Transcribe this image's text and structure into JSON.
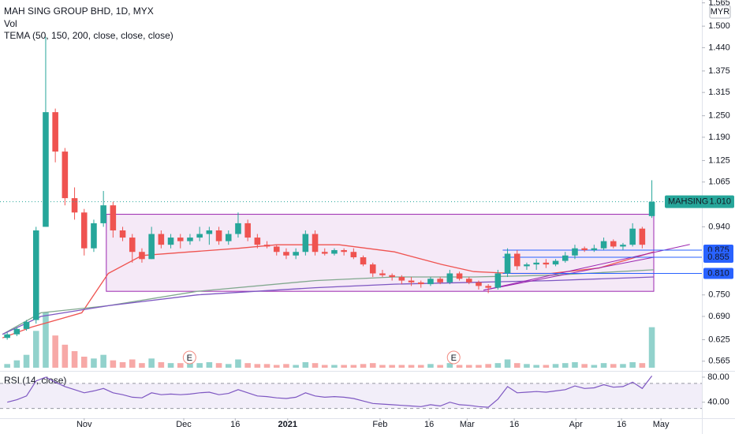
{
  "chart_data": {
    "type": "candlestick",
    "title": "MAH SING GROUP BHD, 1D, MYX",
    "volume_label": "Vol",
    "tema_label": "TEMA (50, 150, 200, close, close, close)",
    "currency": "MYR",
    "up_color": "#26a69a",
    "down_color": "#ef5350",
    "x": [
      1,
      3,
      5,
      7,
      9,
      11,
      13,
      15,
      17,
      19,
      21,
      23,
      25,
      27,
      29,
      31,
      33,
      35,
      37,
      39,
      41,
      43,
      45,
      47,
      49,
      51,
      53,
      55,
      57,
      59,
      61,
      63,
      65,
      67,
      69,
      71,
      73,
      75,
      77,
      79,
      81,
      83,
      85,
      87,
      89,
      91,
      93,
      95,
      97,
      99,
      101,
      103,
      105,
      107,
      109,
      111,
      113,
      115,
      117,
      119,
      121,
      123,
      125,
      127,
      129,
      131,
      133,
      135
    ],
    "open": [
      0.63,
      0.64,
      0.655,
      0.68,
      0.94,
      1.26,
      1.15,
      1.02,
      0.98,
      0.88,
      0.95,
      1.0,
      0.93,
      0.91,
      0.87,
      0.85,
      0.92,
      0.89,
      0.91,
      0.9,
      0.91,
      0.92,
      0.93,
      0.9,
      0.92,
      0.95,
      0.91,
      0.89,
      0.885,
      0.87,
      0.86,
      0.87,
      0.92,
      0.87,
      0.865,
      0.875,
      0.87,
      0.855,
      0.835,
      0.81,
      0.805,
      0.8,
      0.79,
      0.785,
      0.78,
      0.795,
      0.785,
      0.81,
      0.795,
      0.785,
      0.775,
      0.77,
      0.81,
      0.865,
      0.83,
      0.835,
      0.84,
      0.835,
      0.845,
      0.86,
      0.88,
      0.875,
      0.88,
      0.9,
      0.885,
      0.89,
      0.935,
      0.97
    ],
    "high": [
      0.645,
      0.66,
      0.68,
      0.94,
      1.47,
      1.27,
      1.16,
      1.05,
      0.99,
      0.96,
      1.04,
      1.01,
      0.94,
      0.92,
      0.88,
      0.94,
      0.93,
      0.92,
      0.92,
      0.92,
      0.94,
      0.94,
      0.94,
      0.93,
      0.98,
      0.96,
      0.92,
      0.9,
      0.89,
      0.88,
      0.88,
      0.93,
      0.93,
      0.88,
      0.88,
      0.88,
      0.88,
      0.86,
      0.84,
      0.82,
      0.81,
      0.805,
      0.8,
      0.79,
      0.8,
      0.8,
      0.82,
      0.815,
      0.8,
      0.79,
      0.78,
      0.82,
      0.88,
      0.875,
      0.84,
      0.85,
      0.85,
      0.85,
      0.87,
      0.89,
      0.885,
      0.89,
      0.91,
      0.905,
      0.895,
      0.95,
      0.94,
      1.07
    ],
    "low": [
      0.625,
      0.635,
      0.65,
      0.67,
      0.94,
      1.12,
      1.0,
      0.96,
      0.86,
      0.87,
      0.94,
      0.91,
      0.9,
      0.84,
      0.84,
      0.85,
      0.88,
      0.88,
      0.88,
      0.89,
      0.9,
      0.89,
      0.89,
      0.89,
      0.91,
      0.9,
      0.88,
      0.88,
      0.86,
      0.85,
      0.85,
      0.86,
      0.86,
      0.86,
      0.86,
      0.86,
      0.85,
      0.83,
      0.8,
      0.8,
      0.79,
      0.78,
      0.775,
      0.77,
      0.775,
      0.78,
      0.78,
      0.79,
      0.78,
      0.765,
      0.755,
      0.765,
      0.8,
      0.82,
      0.82,
      0.82,
      0.825,
      0.83,
      0.84,
      0.85,
      0.87,
      0.87,
      0.875,
      0.88,
      0.875,
      0.885,
      0.88,
      0.965
    ],
    "close": [
      0.64,
      0.655,
      0.675,
      0.93,
      1.26,
      1.15,
      1.02,
      0.98,
      0.88,
      0.95,
      1.0,
      0.93,
      0.91,
      0.87,
      0.85,
      0.92,
      0.89,
      0.91,
      0.9,
      0.91,
      0.92,
      0.93,
      0.9,
      0.92,
      0.95,
      0.91,
      0.89,
      0.885,
      0.87,
      0.86,
      0.87,
      0.92,
      0.87,
      0.865,
      0.875,
      0.87,
      0.855,
      0.835,
      0.81,
      0.805,
      0.8,
      0.79,
      0.785,
      0.78,
      0.795,
      0.785,
      0.81,
      0.795,
      0.785,
      0.775,
      0.77,
      0.81,
      0.865,
      0.83,
      0.835,
      0.84,
      0.835,
      0.845,
      0.86,
      0.88,
      0.875,
      0.88,
      0.9,
      0.885,
      0.89,
      0.935,
      0.89,
      1.01
    ],
    "volume": [
      4,
      8,
      14,
      40,
      60,
      35,
      25,
      18,
      12,
      10,
      14,
      8,
      6,
      9,
      5,
      10,
      6,
      5,
      5,
      6,
      5,
      6,
      5,
      4,
      9,
      5,
      4,
      4,
      3,
      4,
      3,
      6,
      5,
      3,
      3,
      3,
      3,
      4,
      5,
      3,
      3,
      3,
      3,
      3,
      4,
      3,
      5,
      3,
      3,
      3,
      4,
      5,
      9,
      5,
      4,
      3,
      3,
      4,
      5,
      6,
      4,
      3,
      5,
      4,
      4,
      6,
      5,
      44
    ],
    "xlim": [
      -0.5,
      145.4
    ],
    "xticks": [
      {
        "value": 17,
        "label": "Nov"
      },
      {
        "value": 37.7,
        "label": "Dec"
      },
      {
        "value": 48.4,
        "label": "16"
      },
      {
        "value": 59.3,
        "label": "2021"
      },
      {
        "value": 78.5,
        "label": "Feb"
      },
      {
        "value": 88.7,
        "label": "16"
      },
      {
        "value": 96.6,
        "label": "Mar"
      },
      {
        "value": 106.4,
        "label": "16"
      },
      {
        "value": 119.2,
        "label": "Apr"
      },
      {
        "value": 128.7,
        "label": "16"
      },
      {
        "value": 136.9,
        "label": "May"
      }
    ],
    "ylim": [
      0.538,
      1.573
    ],
    "yticks": [
      1.565,
      {
        "value": 1.5,
        "label": "1.500"
      },
      {
        "value": 1.44,
        "label": "1.440"
      },
      1.375,
      1.315,
      {
        "value": 1.25,
        "label": "1.250"
      },
      {
        "value": 1.19,
        "label": "1.190"
      },
      1.125,
      1.065,
      {
        "value": 0.94,
        "label": "0.940"
      },
      {
        "value": 0.75,
        "label": "0.750"
      },
      {
        "value": 0.69,
        "label": "0.690"
      },
      0.625,
      0.565
    ],
    "tema": [
      {
        "color": "#ef5350",
        "x": [
          0,
          6,
          16.5,
          22,
          29,
          39,
          49,
          57,
          70,
          81.5,
          91.3,
          98,
          106,
          114,
          124,
          135.4
        ],
        "values": [
          0.63,
          0.66,
          0.7,
          0.81,
          0.86,
          0.87,
          0.88,
          0.89,
          0.89,
          0.87,
          0.835,
          0.815,
          0.81,
          0.81,
          0.825,
          0.87
        ]
      },
      {
        "color": "#81a88e",
        "x": [
          0,
          8,
          22,
          40.5,
          65,
          81.5,
          98,
          114,
          135.4
        ],
        "values": [
          0.64,
          0.7,
          0.72,
          0.76,
          0.79,
          0.8,
          0.8,
          0.805,
          0.82
        ]
      },
      {
        "color": "#7e57c2",
        "x": [
          0,
          8,
          22,
          40.5,
          65,
          81.5,
          98,
          114,
          135.4
        ],
        "values": [
          0.64,
          0.69,
          0.72,
          0.75,
          0.77,
          0.78,
          0.785,
          0.79,
          0.8
        ]
      }
    ],
    "box": {
      "x": [
        21.6,
        135.4
      ],
      "y": [
        0.76,
        0.975
      ],
      "color": "#9c27b0"
    },
    "trendlines": [
      {
        "x": [
          100,
          142.9
        ],
        "values": [
          0.763,
          0.891
        ],
        "color": "#9c27b0"
      },
      {
        "x": [
          100,
          135.4
        ],
        "values": [
          0.763,
          0.855
        ],
        "color": "#9c27b0"
      }
    ],
    "levels": [
      0.875,
      0.855,
      {
        "value": 0.81,
        "label": "0.810"
      }
    ],
    "level_color": "#2962ff",
    "level_start": 104,
    "last": {
      "symbol": "MAHSING",
      "value": 1.01,
      "label": "1.010"
    },
    "earnings": [
      {
        "x": 38.9,
        "label": "E"
      },
      {
        "x": 93.8,
        "label": "E"
      }
    ],
    "rsi": {
      "title": "RSI (14, close)",
      "color": "#7e57c2",
      "ylim": [
        14.5,
        87.5
      ],
      "bands": [
        70,
        30
      ],
      "yticks": [
        {
          "value": 80,
          "label": "80.00"
        },
        {
          "value": 40,
          "label": "40.00"
        }
      ],
      "values": [
        40,
        44,
        50,
        74,
        80,
        72,
        65,
        60,
        55,
        58,
        62,
        55,
        52,
        48,
        47,
        55,
        52,
        53,
        52,
        53,
        55,
        56,
        52,
        54,
        60,
        55,
        50,
        49,
        47,
        46,
        48,
        55,
        50,
        48,
        49,
        48,
        46,
        42,
        38,
        37,
        36,
        35,
        34,
        33,
        36,
        34,
        40,
        36,
        35,
        33,
        32,
        45,
        65,
        55,
        56,
        57,
        56,
        58,
        60,
        66,
        62,
        63,
        68,
        64,
        65,
        72,
        62,
        82
      ]
    }
  }
}
